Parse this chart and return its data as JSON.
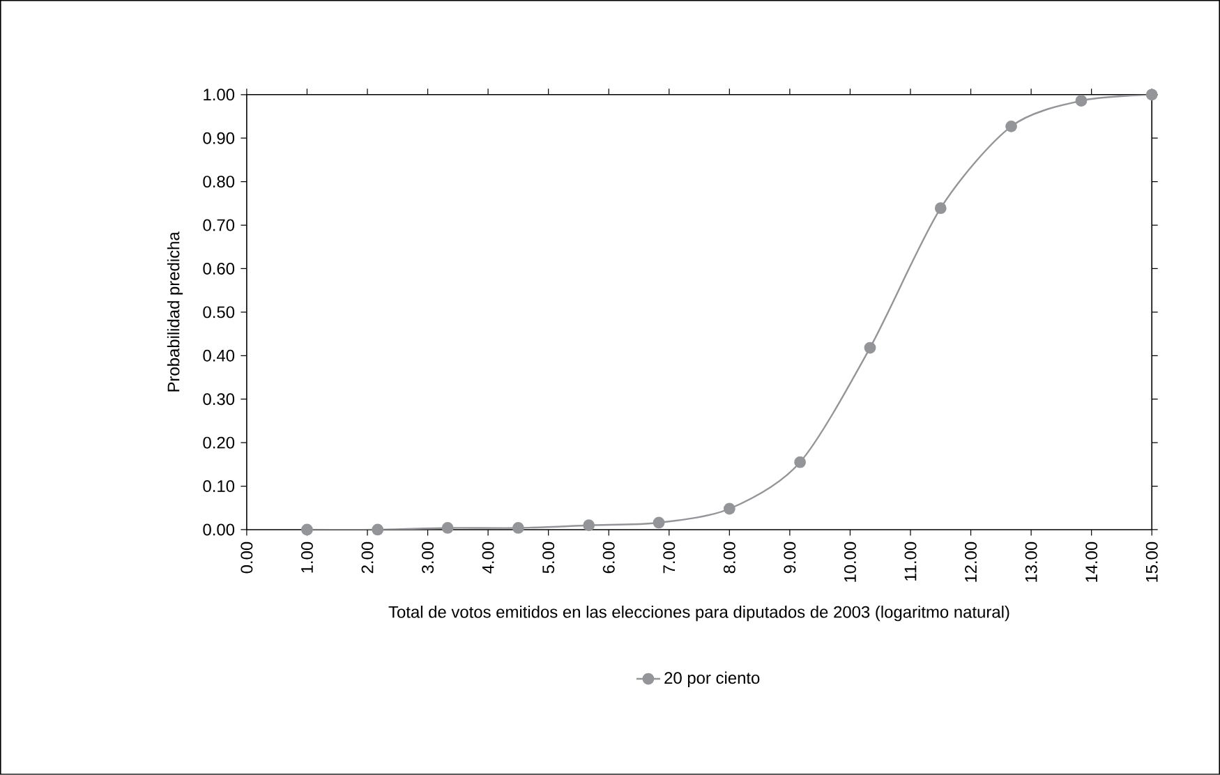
{
  "chart_data": {
    "type": "line",
    "xlabel": "Total de votos emitidos en las elecciones para diputados de 2003 (logaritmo natural)",
    "ylabel": "Probabilidad predicha",
    "xlim": [
      0,
      15
    ],
    "ylim": [
      0,
      1
    ],
    "xticks": [
      {
        "value": 0,
        "label": "0.00"
      },
      {
        "value": 1,
        "label": "1.00"
      },
      {
        "value": 2,
        "label": "2.00"
      },
      {
        "value": 3,
        "label": "3.00"
      },
      {
        "value": 4,
        "label": "4.00"
      },
      {
        "value": 5,
        "label": "5.00"
      },
      {
        "value": 6,
        "label": "6.00"
      },
      {
        "value": 7,
        "label": "7.00"
      },
      {
        "value": 8,
        "label": "8.00"
      },
      {
        "value": 9,
        "label": "9.00"
      },
      {
        "value": 10,
        "label": "10.00"
      },
      {
        "value": 11,
        "label": "11.00"
      },
      {
        "value": 12,
        "label": "12.00"
      },
      {
        "value": 13,
        "label": "13.00"
      },
      {
        "value": 14,
        "label": "14.00"
      },
      {
        "value": 15,
        "label": "15.00"
      }
    ],
    "yticks": [
      {
        "value": 0,
        "label": "0.00"
      },
      {
        "value": 0.1,
        "label": "0.10"
      },
      {
        "value": 0.2,
        "label": "0.20"
      },
      {
        "value": 0.3,
        "label": "0.30"
      },
      {
        "value": 0.4,
        "label": "0.40"
      },
      {
        "value": 0.5,
        "label": "0.50"
      },
      {
        "value": 0.6,
        "label": "0.60"
      },
      {
        "value": 0.7,
        "label": "0.70"
      },
      {
        "value": 0.8,
        "label": "0.80"
      },
      {
        "value": 0.9,
        "label": "0.90"
      },
      {
        "value": 1,
        "label": "1.00"
      }
    ],
    "x": [
      1.0,
      2.17,
      3.33,
      4.5,
      5.67,
      6.83,
      8.0,
      9.17,
      10.33,
      11.5,
      12.67,
      13.83,
      15.0
    ],
    "series": [
      {
        "name": "20 por ciento",
        "color": "#939598",
        "values": [
          0.0,
          0.0,
          0.004,
          0.004,
          0.01,
          0.016,
          0.048,
          0.155,
          0.418,
          0.739,
          0.927,
          0.986,
          1.0
        ]
      }
    ],
    "marker": "circle",
    "line_style": "solid",
    "grid": false,
    "legend": "bottom"
  }
}
